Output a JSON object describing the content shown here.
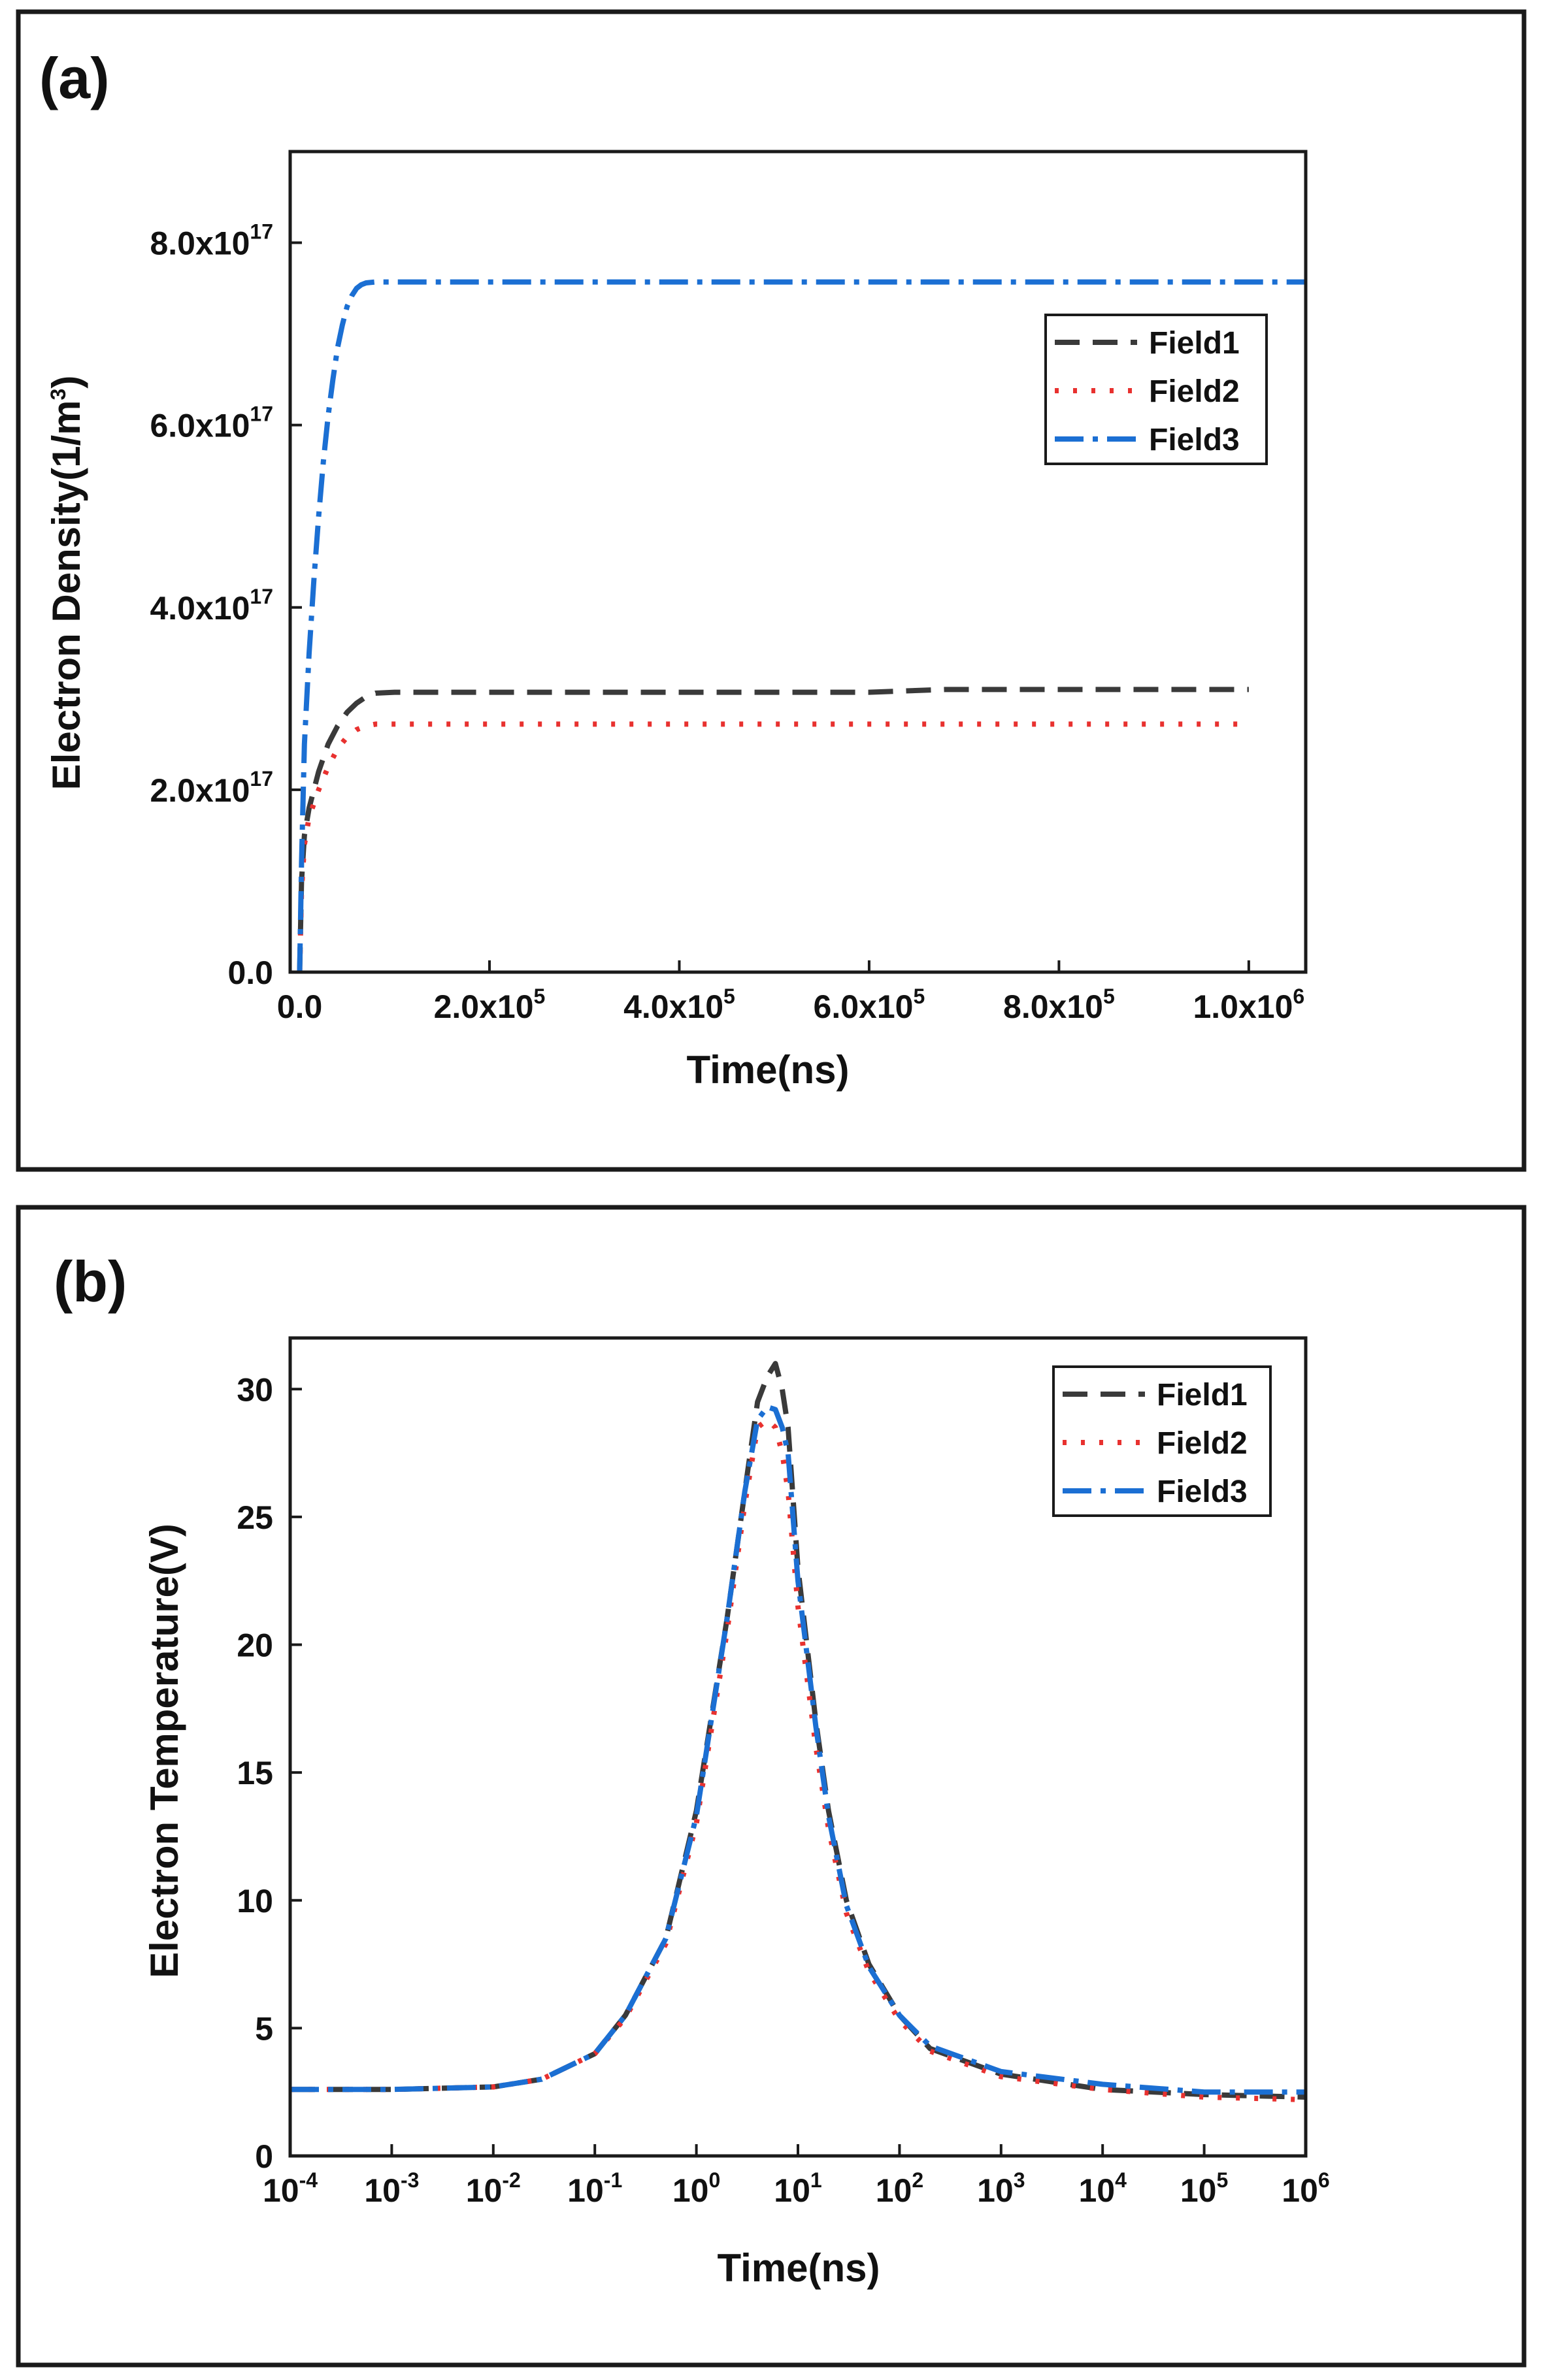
{
  "chart_data": [
    {
      "panel_label": "(a)",
      "type": "line",
      "xlabel": "Time(ns)",
      "ylabel": {
        "base": "Electron Density(1/m",
        "sup": "3",
        "end": ")"
      },
      "xlim": [
        -10000,
        1060000
      ],
      "ylim": [
        0,
        9e+17
      ],
      "x_ticks": [
        {
          "value": 0,
          "mant": "0.0",
          "exp": ""
        },
        {
          "value": 200000,
          "mant": "2.0x10",
          "exp": "5"
        },
        {
          "value": 400000,
          "mant": "4.0x10",
          "exp": "5"
        },
        {
          "value": 600000,
          "mant": "6.0x10",
          "exp": "5"
        },
        {
          "value": 800000,
          "mant": "8.0x10",
          "exp": "5"
        },
        {
          "value": 1000000,
          "mant": "1.0x10",
          "exp": "6"
        }
      ],
      "y_ticks": [
        {
          "value": 0,
          "mant": "0.0",
          "exp": ""
        },
        {
          "value": 2e+17,
          "mant": "2.0x10",
          "exp": "17"
        },
        {
          "value": 4e+17,
          "mant": "4.0x10",
          "exp": "17"
        },
        {
          "value": 6e+17,
          "mant": "6.0x10",
          "exp": "17"
        },
        {
          "value": 8e+17,
          "mant": "8.0x10",
          "exp": "17"
        }
      ],
      "legend": {
        "position": "top-right"
      },
      "series": [
        {
          "name": "Field1",
          "color": "#3a3a3a",
          "dash": "38 20",
          "x": [
            0,
            2000,
            5000,
            10000,
            20000,
            30000,
            40000,
            50000,
            60000,
            70000,
            80000,
            100000,
            200000,
            400000,
            600000,
            680000,
            700000,
            800000,
            900000,
            1000000
          ],
          "y": [
            0,
            1e+17,
            1.5e+17,
            1.8e+17,
            2.2e+17,
            2.5e+17,
            2.7e+17,
            2.85e+17,
            2.95e+17,
            3.02e+17,
            3.06e+17,
            3.07e+17,
            3.07e+17,
            3.07e+17,
            3.07e+17,
            3.1e+17,
            3.1e+17,
            3.1e+17,
            3.1e+17,
            3.1e+17
          ]
        },
        {
          "name": "Field2",
          "color": "#e8312f",
          "dash": "6 22",
          "x": [
            0,
            2000,
            5000,
            10000,
            20000,
            30000,
            40000,
            50000,
            60000,
            70000,
            80000,
            100000,
            300000,
            500000,
            700000,
            900000,
            1000000
          ],
          "y": [
            0,
            9e+16,
            1.4e+17,
            1.7e+17,
            2e+17,
            2.25e+17,
            2.45e+17,
            2.58e+17,
            2.66e+17,
            2.7e+17,
            2.72e+17,
            2.72e+17,
            2.72e+17,
            2.72e+17,
            2.72e+17,
            2.72e+17,
            2.72e+17
          ]
        },
        {
          "name": "Field3",
          "color": "#1b6fd3",
          "dash": "44 14 8 14",
          "x": [
            0,
            2000,
            5000,
            10000,
            15000,
            20000,
            25000,
            30000,
            35000,
            40000,
            45000,
            50000,
            55000,
            60000,
            65000,
            70000,
            80000,
            100000,
            300000,
            600000,
            900000,
            1060000
          ],
          "y": [
            0,
            1.2e+17,
            2.5e+17,
            3.5e+17,
            4.3e+17,
            5e+17,
            5.6e+17,
            6.1e+17,
            6.5e+17,
            6.85e+17,
            7.1e+17,
            7.3e+17,
            7.42e+17,
            7.5e+17,
            7.54e+17,
            7.56e+17,
            7.57e+17,
            7.57e+17,
            7.57e+17,
            7.57e+17,
            7.57e+17,
            7.57e+17
          ]
        }
      ]
    },
    {
      "panel_label": "(b)",
      "type": "line",
      "xscale": "log",
      "xlabel": "Time(ns)",
      "ylabel": {
        "base": "Electron Temperature(V)",
        "sup": "",
        "end": ""
      },
      "xlim": [
        0.0001,
        1000000
      ],
      "ylim": [
        0,
        32
      ],
      "x_ticks": [
        {
          "value": 0.0001,
          "mant": "10",
          "exp": "-4"
        },
        {
          "value": 0.001,
          "mant": "10",
          "exp": "-3"
        },
        {
          "value": 0.01,
          "mant": "10",
          "exp": "-2"
        },
        {
          "value": 0.1,
          "mant": "10",
          "exp": "-1"
        },
        {
          "value": 1,
          "mant": "10",
          "exp": "0"
        },
        {
          "value": 10,
          "mant": "10",
          "exp": "1"
        },
        {
          "value": 100,
          "mant": "10",
          "exp": "2"
        },
        {
          "value": 1000,
          "mant": "10",
          "exp": "3"
        },
        {
          "value": 10000,
          "mant": "10",
          "exp": "4"
        },
        {
          "value": 100000,
          "mant": "10",
          "exp": "5"
        },
        {
          "value": 1000000,
          "mant": "10",
          "exp": "6"
        }
      ],
      "y_ticks": [
        {
          "value": 0,
          "mant": "0",
          "exp": ""
        },
        {
          "value": 5,
          "mant": "5",
          "exp": ""
        },
        {
          "value": 10,
          "mant": "10",
          "exp": ""
        },
        {
          "value": 15,
          "mant": "15",
          "exp": ""
        },
        {
          "value": 20,
          "mant": "20",
          "exp": ""
        },
        {
          "value": 25,
          "mant": "25",
          "exp": ""
        },
        {
          "value": 30,
          "mant": "30",
          "exp": ""
        }
      ],
      "legend": {
        "position": "top-right"
      },
      "series": [
        {
          "name": "Field1",
          "color": "#3a3a3a",
          "dash": "38 20",
          "x": [
            0.0001,
            0.001,
            0.01,
            0.03,
            0.1,
            0.2,
            0.5,
            1,
            2,
            3,
            4,
            5,
            6,
            7,
            8,
            10,
            15,
            20,
            30,
            50,
            100,
            200,
            1000,
            10000,
            100000,
            1000000
          ],
          "y": [
            2.6,
            2.6,
            2.7,
            3.0,
            4.0,
            5.5,
            8.5,
            13.5,
            21.0,
            26.0,
            29.5,
            30.5,
            31.0,
            30.0,
            28.5,
            23.0,
            17.0,
            13.5,
            10.0,
            7.5,
            5.5,
            4.2,
            3.2,
            2.6,
            2.4,
            2.3
          ]
        },
        {
          "name": "Field2",
          "color": "#e8312f",
          "dash": "6 22",
          "x": [
            0.0001,
            0.001,
            0.01,
            0.03,
            0.1,
            0.2,
            0.5,
            1,
            2,
            3,
            4,
            5,
            6,
            7,
            8,
            10,
            15,
            20,
            30,
            50,
            100,
            200,
            1000,
            10000,
            100000,
            1000000
          ],
          "y": [
            2.6,
            2.6,
            2.7,
            3.0,
            4.0,
            5.4,
            8.3,
            13.0,
            20.5,
            25.5,
            28.5,
            28.8,
            28.5,
            27.5,
            26.0,
            21.5,
            16.0,
            12.8,
            9.5,
            7.2,
            5.3,
            4.1,
            3.1,
            2.6,
            2.3,
            2.2
          ]
        },
        {
          "name": "Field3",
          "color": "#1b6fd3",
          "dash": "44 14 8 14",
          "x": [
            0.0001,
            0.001,
            0.01,
            0.03,
            0.1,
            0.2,
            0.5,
            1,
            2,
            3,
            4,
            5,
            6,
            7,
            8,
            10,
            15,
            20,
            30,
            50,
            100,
            200,
            1000,
            10000,
            100000,
            1000000
          ],
          "y": [
            2.6,
            2.6,
            2.7,
            3.0,
            4.0,
            5.5,
            8.5,
            13.3,
            21.0,
            26.0,
            28.8,
            29.3,
            29.2,
            28.5,
            27.5,
            22.5,
            16.8,
            13.3,
            9.8,
            7.4,
            5.5,
            4.3,
            3.3,
            2.8,
            2.5,
            2.5
          ]
        }
      ]
    }
  ]
}
